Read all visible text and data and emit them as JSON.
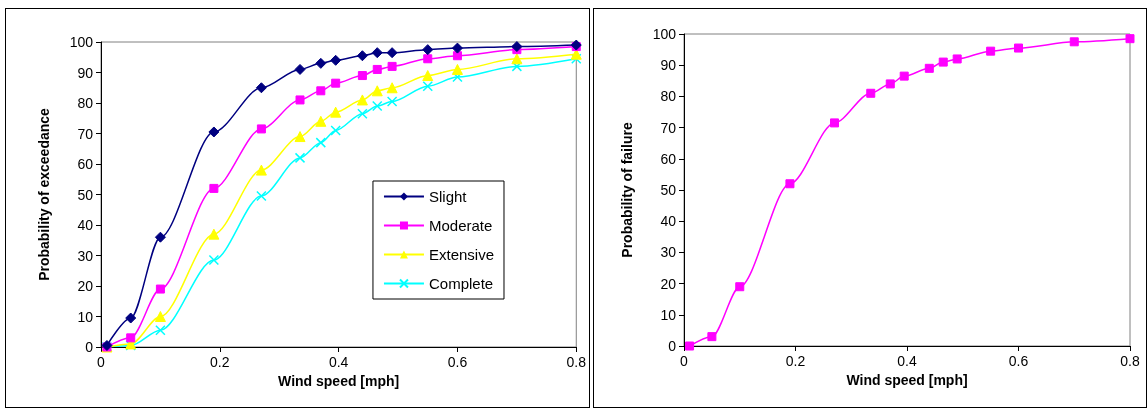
{
  "chart_data": [
    {
      "type": "line",
      "xlabel": "Wind speed [mph]",
      "ylabel": "Probability of exceedance",
      "xlim": [
        0,
        0.8
      ],
      "xticks": [
        0,
        0.2,
        0.4,
        0.6,
        0.8
      ],
      "ylim": [
        0,
        100
      ],
      "yticks": [
        0,
        10,
        20,
        30,
        40,
        50,
        60,
        70,
        80,
        90,
        100
      ],
      "grid": false,
      "legend": "right",
      "x": [
        0.01,
        0.05,
        0.1,
        0.19,
        0.27,
        0.335,
        0.37,
        0.395,
        0.44,
        0.465,
        0.49,
        0.55,
        0.6,
        0.7,
        0.8
      ],
      "series": [
        {
          "name": "Slight",
          "color": "#000080",
          "marker": "diamond",
          "values": [
            0.5,
            9.5,
            36,
            70.5,
            85,
            91,
            93,
            94,
            95.5,
            96.5,
            96.5,
            97.5,
            98,
            98.5,
            99
          ]
        },
        {
          "name": "Moderate",
          "color": "#ff00ff",
          "marker": "square",
          "values": [
            0,
            3,
            19,
            52,
            71.5,
            81,
            84,
            86.5,
            89,
            91,
            92,
            94.5,
            95.5,
            97.5,
            98.5
          ]
        },
        {
          "name": "Extensive",
          "color": "#ffff00",
          "marker": "triangle",
          "values": [
            0,
            1,
            10,
            37,
            58,
            69,
            74,
            77,
            81,
            84,
            85,
            89,
            91,
            94.5,
            96
          ]
        },
        {
          "name": "Complete",
          "color": "#00ffff",
          "marker": "cross",
          "values": [
            0,
            0.5,
            5.5,
            28.5,
            49.5,
            62,
            67,
            71,
            76.5,
            79,
            80.5,
            85.5,
            88.5,
            92,
            94.5
          ]
        }
      ]
    },
    {
      "type": "line",
      "xlabel": "Wind speed [mph]",
      "ylabel": "Probability of failure",
      "xlim": [
        0,
        0.8
      ],
      "xticks": [
        0,
        0.2,
        0.4,
        0.6,
        0.8
      ],
      "ylim": [
        0,
        100
      ],
      "yticks": [
        0,
        10,
        20,
        30,
        40,
        50,
        60,
        70,
        80,
        90,
        100
      ],
      "grid": false,
      "legend": false,
      "x": [
        0.01,
        0.05,
        0.1,
        0.19,
        0.27,
        0.335,
        0.37,
        0.395,
        0.44,
        0.465,
        0.49,
        0.55,
        0.6,
        0.7,
        0.8
      ],
      "series": [
        {
          "color": "#ff00ff",
          "marker": "square",
          "values": [
            0,
            3,
            19,
            52,
            71.5,
            81,
            84,
            86.5,
            89,
            91,
            92,
            94.5,
            95.5,
            97.5,
            98.5
          ]
        }
      ]
    }
  ]
}
